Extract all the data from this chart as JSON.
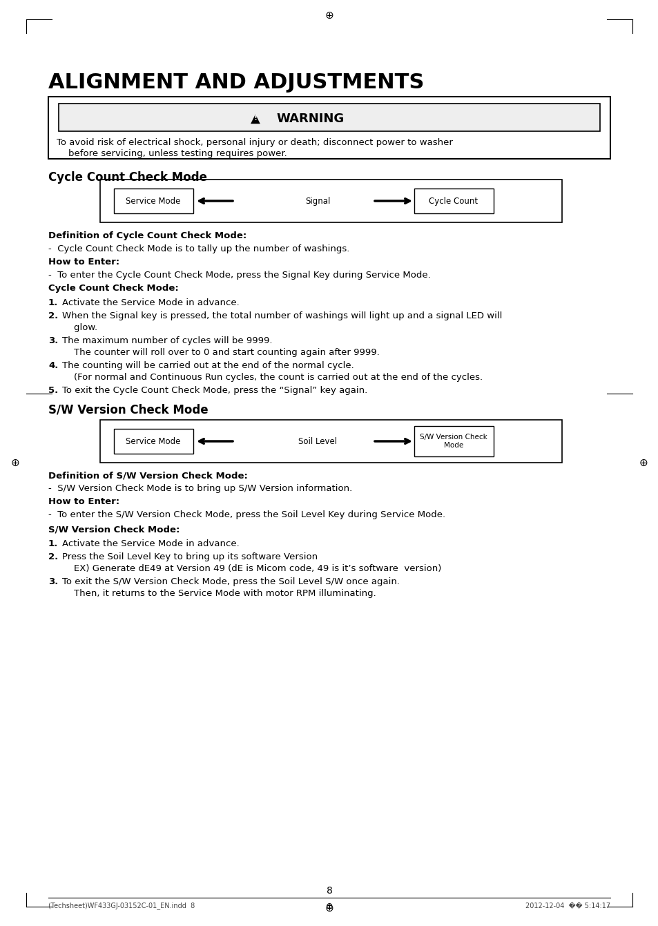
{
  "title": "ALIGNMENT AND ADJUSTMENTS",
  "warning_title": "WARNING",
  "warning_line1": "To avoid risk of electrical shock, personal injury or death; disconnect power to washer",
  "warning_line2": "    before servicing, unless testing requires power.",
  "section1_title": "Cycle Count Check Mode",
  "section1_def_title": "Definition of Cycle Count Check Mode:",
  "section1_def_text": "-  Cycle Count Check Mode is to tally up the number of washings.",
  "section1_how_title": "How to Enter:",
  "section1_how_text": "-  To enter the Cycle Count Check Mode, press the Signal Key during Service Mode.",
  "section1_mode_title": "Cycle Count Check Mode:",
  "section1_items_bold": [
    "1.",
    "2.",
    "3.",
    "4.",
    "5."
  ],
  "section1_items_text": [
    "Activate the Service Mode in advance.",
    "When the Signal key is pressed, the total number of washings will light up and a signal LED will",
    "The maximum number of cycles will be 9999.",
    "The counting will be carried out at the end of the normal cycle.",
    "To exit the Cycle Count Check Mode, press the “Signal” key again."
  ],
  "section1_items_line2": [
    "",
    "    glow.",
    "    The counter will roll over to 0 and start counting again after 9999.",
    "    (For normal and Continuous Run cycles, the count is carried out at the end of the cycles.",
    ""
  ],
  "section2_title": "S/W Version Check Mode",
  "section2_def_title": "Definition of S/W Version Check Mode:",
  "section2_def_text": "-  S/W Version Check Mode is to bring up S/W Version information.",
  "section2_how_title": "How to Enter:",
  "section2_how_text": "-  To enter the S/W Version Check Mode, press the Soil Level Key during Service Mode.",
  "section2_mode_title": "S/W Version Check Mode:",
  "section2_items_bold": [
    "1.",
    "2.",
    "3."
  ],
  "section2_items_text": [
    "Activate the Service Mode in advance.",
    "Press the Soil Level Key to bring up its software Version",
    "To exit the S/W Version Check Mode, press the Soil Level S/W once again."
  ],
  "section2_items_line2": [
    "",
    "    EX) Generate dE49 at Version 49 (dE is Micom code, 49 is it’s software  version)",
    "    Then, it returns to the Service Mode with motor RPM illuminating."
  ],
  "page_number": "8",
  "footer_left": "(Techsheet)WF433GJ-03152C-01_EN.indd  8",
  "footer_right": "2012-12-04  �� 5:14:17",
  "bg_color": "#ffffff"
}
